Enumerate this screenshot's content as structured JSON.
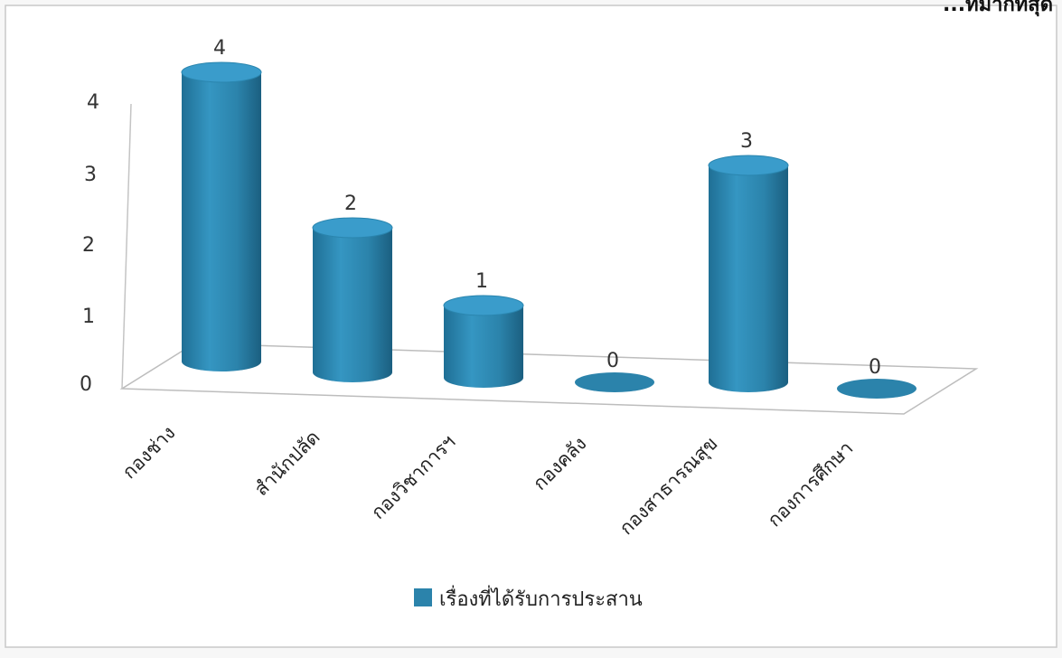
{
  "chart_data": {
    "type": "bar",
    "style": "3d-cylinder",
    "title": "",
    "partial_title_text": "...ที่มากที่สุด",
    "categories": [
      "กองช่าง",
      "สำนักปลัด",
      "กองวิชาการฯ",
      "กองคลัง",
      "กองสาธารณสุข",
      "กองการศึกษา"
    ],
    "series": [
      {
        "name": "เรื่องที่ได้รับการประสาน",
        "values": [
          4,
          2,
          1,
          0,
          3,
          0
        ],
        "color": "#2b83ab"
      }
    ],
    "y_ticks": [
      "0",
      "1",
      "2",
      "3",
      "4"
    ],
    "ylim": [
      0,
      4
    ],
    "xlabel": "",
    "ylabel": "",
    "grid": false,
    "legend_position": "bottom",
    "data_labels": true
  }
}
